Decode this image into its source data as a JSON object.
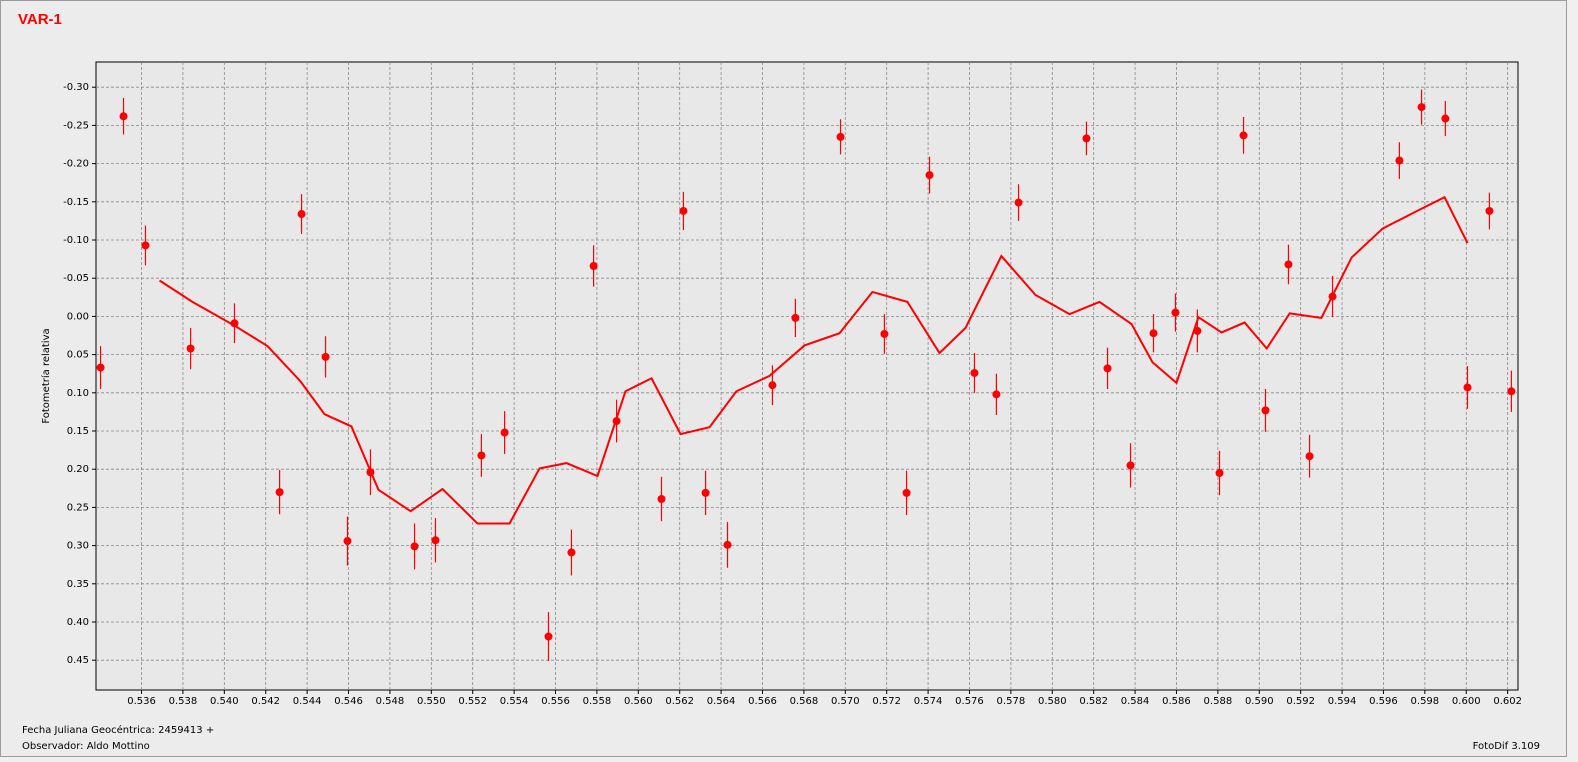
{
  "chart_data": {
    "type": "scatter",
    "title": "VAR-1",
    "ylabel": "Fotometría relativa",
    "xlabel": "Fecha Juliana Geocéntrica: 2459413 +",
    "observer": "Observador: Aldo Mottino",
    "software": "FotoDif 3.109",
    "xlim": [
      0.5338,
      0.6025
    ],
    "ylim": [
      -0.333,
      0.489
    ],
    "invert_y": true,
    "grid": true,
    "xticks": [
      0.536,
      0.538,
      {
        "value": 0.54,
        "label": "0.540"
      },
      0.542,
      0.544,
      0.546,
      0.548,
      {
        "value": 0.55,
        "label": "0.550"
      },
      0.552,
      0.554,
      0.556,
      0.558,
      {
        "value": 0.56,
        "label": "0.560"
      },
      0.562,
      0.564,
      0.566,
      0.568,
      {
        "value": 0.57,
        "label": "0.570"
      },
      0.572,
      0.574,
      0.576,
      0.578,
      {
        "value": 0.58,
        "label": "0.580"
      },
      0.582,
      0.584,
      0.586,
      0.588,
      {
        "value": 0.59,
        "label": "0.590"
      },
      0.592,
      0.594,
      0.596,
      0.598,
      {
        "value": 0.6,
        "label": "0.600"
      },
      0.602
    ],
    "yticks": [
      {
        "value": -0.3,
        "label": "-0.30"
      },
      -0.25,
      {
        "value": -0.2,
        "label": "-0.20"
      },
      -0.15,
      {
        "value": -0.1,
        "label": "-0.10"
      },
      -0.05,
      {
        "value": 0,
        "label": "0.00"
      },
      0.05,
      {
        "value": 0.1,
        "label": "0.10"
      },
      0.15,
      {
        "value": 0.2,
        "label": "0.20"
      },
      0.25,
      {
        "value": 0.3,
        "label": "0.30"
      },
      0.35,
      {
        "value": 0.4,
        "label": "0.40"
      },
      0.45
    ],
    "series": [
      {
        "type": "scatter",
        "color": "#ff0000",
        "x": [
          0.53402,
          0.53513,
          0.53619,
          0.53837,
          0.54049,
          0.54267,
          0.54373,
          0.54489,
          0.54595,
          0.54706,
          0.54919,
          0.5502,
          0.55242,
          0.55354,
          0.55566,
          0.55677,
          0.55784,
          0.55895,
          0.56112,
          0.56218,
          0.56325,
          0.56431,
          0.56648,
          0.56759,
          0.56977,
          0.57189,
          0.57296,
          0.57407,
          0.57624,
          0.5773,
          0.57837,
          0.58165,
          0.58267,
          0.58378,
          0.58489,
          0.58595,
          0.58701,
          0.58808,
          0.58924,
          0.5903,
          0.59141,
          0.59243,
          0.59354,
          0.59677,
          0.59784,
          0.59899,
          0.60006,
          0.60112,
          0.60218
        ],
        "values": [
          0.067,
          -0.262,
          -0.093,
          0.042,
          0.009,
          0.23,
          -0.134,
          0.053,
          0.294,
          0.204,
          0.301,
          0.293,
          0.182,
          0.152,
          0.419,
          0.309,
          -0.066,
          0.137,
          0.239,
          -0.138,
          0.231,
          0.299,
          0.09,
          0.002,
          -0.235,
          0.023,
          0.231,
          -0.185,
          0.074,
          0.102,
          -0.149,
          -0.233,
          0.068,
          0.195,
          0.022,
          -0.005,
          0.019,
          0.205,
          -0.237,
          0.123,
          -0.068,
          0.183,
          -0.026,
          -0.204,
          -0.274,
          -0.259,
          0.093,
          -0.138,
          0.098
        ],
        "errors": [
          0.028,
          0.024,
          0.026,
          0.027,
          0.026,
          0.029,
          0.026,
          0.027,
          0.032,
          0.03,
          0.03,
          0.029,
          0.028,
          0.028,
          0.032,
          0.03,
          0.027,
          0.028,
          0.029,
          0.025,
          0.029,
          0.03,
          0.026,
          0.025,
          0.023,
          0.026,
          0.029,
          0.024,
          0.026,
          0.027,
          0.024,
          0.022,
          0.027,
          0.029,
          0.025,
          0.025,
          0.028,
          0.029,
          0.024,
          0.028,
          0.026,
          0.028,
          0.027,
          0.024,
          0.023,
          0.023,
          0.028,
          0.024,
          0.027
        ]
      },
      {
        "type": "line",
        "color": "#ff0000",
        "x": [
          0.53687,
          0.53846,
          0.54049,
          0.54209,
          0.54368,
          0.54484,
          0.54614,
          0.54745,
          0.549,
          0.55054,
          0.55223,
          0.55378,
          0.55523,
          0.55653,
          0.55803,
          0.55938,
          0.56064,
          0.56204,
          0.56344,
          0.56474,
          0.56633,
          0.56803,
          0.56972,
          0.57131,
          0.573,
          0.57455,
          0.57581,
          0.57754,
          0.57919,
          0.58083,
          0.58228,
          0.58383,
          0.58484,
          0.586,
          0.58706,
          0.58818,
          0.58929,
          0.59036,
          0.59147,
          0.593,
          0.59446,
          0.59596,
          0.59769,
          0.59895,
          0.60006
        ],
        "values": [
          -0.047,
          -0.019,
          0.012,
          0.039,
          0.085,
          0.128,
          0.144,
          0.227,
          0.255,
          0.226,
          0.271,
          0.271,
          0.199,
          0.192,
          0.209,
          0.098,
          0.081,
          0.154,
          0.145,
          0.098,
          0.078,
          0.038,
          0.022,
          -0.032,
          -0.019,
          0.048,
          0.015,
          -0.079,
          -0.028,
          -0.003,
          -0.019,
          0.01,
          0.06,
          0.087,
          0.001,
          0.021,
          0.008,
          0.042,
          -0.004,
          0.002,
          -0.077,
          -0.115,
          -0.139,
          -0.156,
          -0.096
        ]
      }
    ]
  }
}
